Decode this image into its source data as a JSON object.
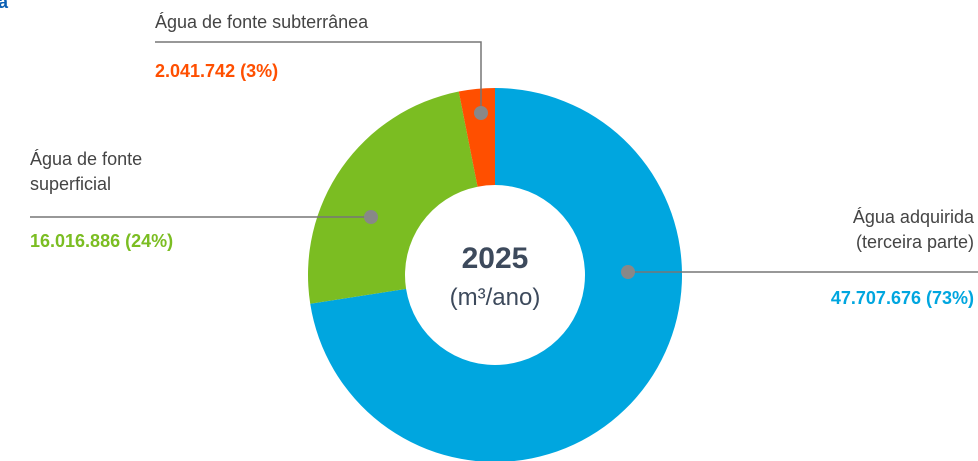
{
  "chart_data": {
    "type": "donut",
    "title": "a",
    "center_title": "2025",
    "center_subtitle": "(m³/ano)",
    "series": [
      {
        "name": "Água adquirida (terceira parte)",
        "color": "#00a6df",
        "values": [
          47707676
        ],
        "value_labels": [
          "47.707.676 (73%)"
        ]
      },
      {
        "name": "Água de fonte superficial",
        "color": "#7bbd22",
        "values": [
          16016886
        ],
        "value_labels": [
          "16.016.886 (24%)"
        ]
      },
      {
        "name": "Água de fonte subterrânea",
        "color": "#ff4f00",
        "values": [
          2041742
        ],
        "value_labels": [
          "2.041.742 (3%)"
        ]
      }
    ]
  }
}
